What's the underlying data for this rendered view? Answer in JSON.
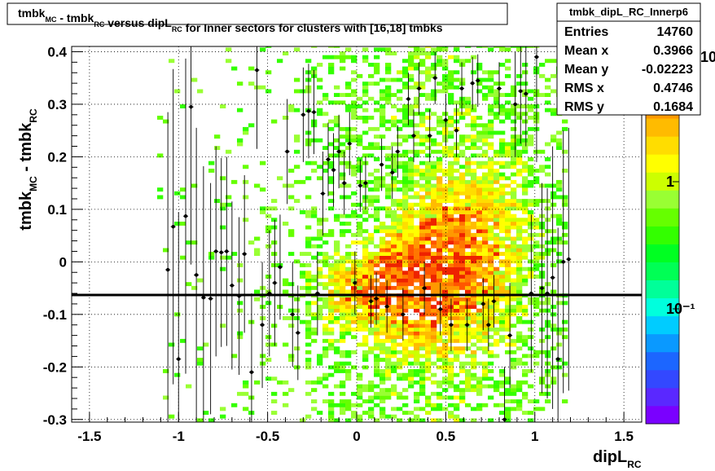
{
  "chart_data": {
    "type": "heatmap",
    "title": {
      "parts": [
        {
          "text": "tmbk",
          "sub": "MC"
        },
        {
          "text": " - tmbk",
          "sub": "RC"
        },
        {
          "text": " versus dipL",
          "sub": "RC"
        },
        {
          "text": " for Inner sectors for clusters with [16,18] tmbks",
          "sub": ""
        }
      ]
    },
    "xlabel": {
      "text": "dipL",
      "sub": "RC"
    },
    "ylabel": {
      "text": "tmbk",
      "sub": "MC",
      "text2": " - tmbk",
      "sub2": "RC"
    },
    "xlim": [
      -1.6,
      1.6
    ],
    "ylim": [
      -0.305,
      0.41
    ],
    "x_ticks": [
      -1.5,
      -1,
      -0.5,
      0,
      0.5,
      1,
      1.5
    ],
    "x_tick_labels": [
      "-1.5",
      "-1",
      "-0.5",
      "0",
      "0.5",
      "1",
      "1.5"
    ],
    "y_ticks": [
      -0.3,
      -0.2,
      -0.1,
      0,
      0.1,
      0.2,
      0.3,
      0.4
    ],
    "y_tick_labels": [
      "-0.3",
      "-0.2",
      "-0.1",
      "0",
      "0.1",
      "0.2",
      "0.3",
      "0.4"
    ],
    "grid": true,
    "color_scale": "log",
    "color_axis_labels": [
      "1",
      "10",
      "10⁻¹"
    ],
    "palette": [
      "#7a00ff",
      "#5a28ff",
      "#3348ff",
      "#1c66ff",
      "#0a99ff",
      "#00ccff",
      "#00ffdd",
      "#00ff99",
      "#00ff55",
      "#00ff22",
      "#33ff00",
      "#66ff00",
      "#99ff33",
      "#ccff00",
      "#ffff00",
      "#ffdd00",
      "#ffbb00",
      "#ff9900",
      "#ff7700",
      "#ff5500",
      "#ee2200"
    ],
    "reference_line": {
      "y": -0.063,
      "color": "#000000"
    },
    "profile_points": [
      {
        "x": -1.06,
        "y": -0.015,
        "err": 0.3
      },
      {
        "x": -1.03,
        "y": 0.067,
        "err": 0.3
      },
      {
        "x": -1.0,
        "y": -0.185,
        "err": 0.28
      },
      {
        "x": -0.96,
        "y": 0.087,
        "err": 0.3
      },
      {
        "x": -0.93,
        "y": 0.295,
        "err": 0.3
      },
      {
        "x": -0.9,
        "y": -0.025,
        "err": 0.28
      },
      {
        "x": -0.86,
        "y": -0.068,
        "err": 0.25
      },
      {
        "x": -0.82,
        "y": -0.07,
        "err": 0.22
      },
      {
        "x": -0.79,
        "y": 0.02,
        "err": 0.2
      },
      {
        "x": -0.76,
        "y": 0.018,
        "err": 0.18
      },
      {
        "x": -0.73,
        "y": 0.02,
        "err": 0.18
      },
      {
        "x": -0.7,
        "y": -0.045,
        "err": 0.16
      },
      {
        "x": -0.66,
        "y": -0.065,
        "err": 0.15
      },
      {
        "x": -0.63,
        "y": 0.015,
        "err": 0.15
      },
      {
        "x": -0.59,
        "y": -0.21,
        "err": 0.15
      },
      {
        "x": -0.56,
        "y": 0.365,
        "err": 0.15
      },
      {
        "x": -0.53,
        "y": -0.12,
        "err": 0.12
      },
      {
        "x": -0.49,
        "y": -0.06,
        "err": 0.12
      },
      {
        "x": -0.46,
        "y": -0.04,
        "err": 0.12
      },
      {
        "x": -0.43,
        "y": -0.01,
        "err": 0.1
      },
      {
        "x": -0.39,
        "y": 0.21,
        "err": 0.1
      },
      {
        "x": -0.36,
        "y": -0.1,
        "err": 0.1
      },
      {
        "x": -0.33,
        "y": -0.135,
        "err": 0.09
      },
      {
        "x": -0.3,
        "y": 0.28,
        "err": 0.09
      },
      {
        "x": -0.27,
        "y": 0.287,
        "err": 0.09
      },
      {
        "x": -0.24,
        "y": 0.285,
        "err": 0.08
      },
      {
        "x": -0.22,
        "y": -0.06,
        "err": 0.08
      },
      {
        "x": -0.19,
        "y": 0.13,
        "err": 0.08
      },
      {
        "x": -0.16,
        "y": 0.195,
        "err": 0.07
      },
      {
        "x": -0.13,
        "y": 0.175,
        "err": 0.07
      },
      {
        "x": -0.1,
        "y": 0.21,
        "err": 0.07
      },
      {
        "x": -0.07,
        "y": 0.15,
        "err": 0.06
      },
      {
        "x": -0.04,
        "y": 0.225,
        "err": 0.06
      },
      {
        "x": -0.01,
        "y": -0.04,
        "err": 0.06
      },
      {
        "x": 0.02,
        "y": 0.145,
        "err": 0.05
      },
      {
        "x": 0.05,
        "y": 0.15,
        "err": 0.05
      },
      {
        "x": 0.08,
        "y": -0.075,
        "err": 0.05
      },
      {
        "x": 0.11,
        "y": -0.07,
        "err": 0.05
      },
      {
        "x": 0.14,
        "y": 0.185,
        "err": 0.05
      },
      {
        "x": 0.17,
        "y": -0.085,
        "err": 0.05
      },
      {
        "x": 0.2,
        "y": 0.17,
        "err": 0.05
      },
      {
        "x": 0.23,
        "y": 0.21,
        "err": 0.05
      },
      {
        "x": 0.26,
        "y": -0.1,
        "err": 0.05
      },
      {
        "x": 0.29,
        "y": 0.31,
        "err": 0.05
      },
      {
        "x": 0.32,
        "y": 0.24,
        "err": 0.05
      },
      {
        "x": 0.35,
        "y": 0.33,
        "err": 0.05
      },
      {
        "x": 0.38,
        "y": -0.05,
        "err": 0.05
      },
      {
        "x": 0.41,
        "y": 0.24,
        "err": 0.05
      },
      {
        "x": 0.44,
        "y": 0.35,
        "err": 0.05
      },
      {
        "x": 0.47,
        "y": -0.09,
        "err": 0.05
      },
      {
        "x": 0.5,
        "y": 0.27,
        "err": 0.05
      },
      {
        "x": 0.53,
        "y": -0.12,
        "err": 0.05
      },
      {
        "x": 0.56,
        "y": 0.25,
        "err": 0.05
      },
      {
        "x": 0.59,
        "y": 0.33,
        "err": 0.05
      },
      {
        "x": 0.62,
        "y": -0.12,
        "err": 0.05
      },
      {
        "x": 0.65,
        "y": 0.34,
        "err": 0.05
      },
      {
        "x": 0.68,
        "y": 0.345,
        "err": 0.05
      },
      {
        "x": 0.71,
        "y": -0.08,
        "err": 0.05
      },
      {
        "x": 0.74,
        "y": -0.12,
        "err": 0.05
      },
      {
        "x": 0.77,
        "y": -0.075,
        "err": 0.05
      },
      {
        "x": 0.8,
        "y": 0.33,
        "err": 0.05
      },
      {
        "x": 0.83,
        "y": -0.3,
        "err": 0.1
      },
      {
        "x": 0.86,
        "y": -0.14,
        "err": 0.1
      },
      {
        "x": 0.89,
        "y": 0.3,
        "err": 0.1
      },
      {
        "x": 0.92,
        "y": 0.325,
        "err": 0.1
      },
      {
        "x": 0.95,
        "y": 0.32,
        "err": 0.1
      },
      {
        "x": 0.98,
        "y": -0.06,
        "err": 0.15
      },
      {
        "x": 1.01,
        "y": 0.39,
        "err": 0.2
      },
      {
        "x": 1.04,
        "y": -0.05,
        "err": 0.2
      },
      {
        "x": 1.07,
        "y": -0.06,
        "err": 0.2
      },
      {
        "x": 1.1,
        "y": -0.03,
        "err": 0.25
      },
      {
        "x": 1.13,
        "y": -0.185,
        "err": 0.25
      },
      {
        "x": 1.16,
        "y": 0.0,
        "err": 0.25
      },
      {
        "x": 1.19,
        "y": 0.005,
        "err": 0.25
      }
    ]
  },
  "stats_box": {
    "title": "tmbk_dipL_RC_Innerp6",
    "rows": [
      {
        "label": "Entries",
        "value": "14760"
      },
      {
        "label": "Mean x",
        "value": "0.3966"
      },
      {
        "label": "Mean y",
        "value": "-0.02223"
      },
      {
        "label": "RMS x",
        "value": "0.4746"
      },
      {
        "label": "RMS y",
        "value": "0.1684"
      }
    ]
  }
}
